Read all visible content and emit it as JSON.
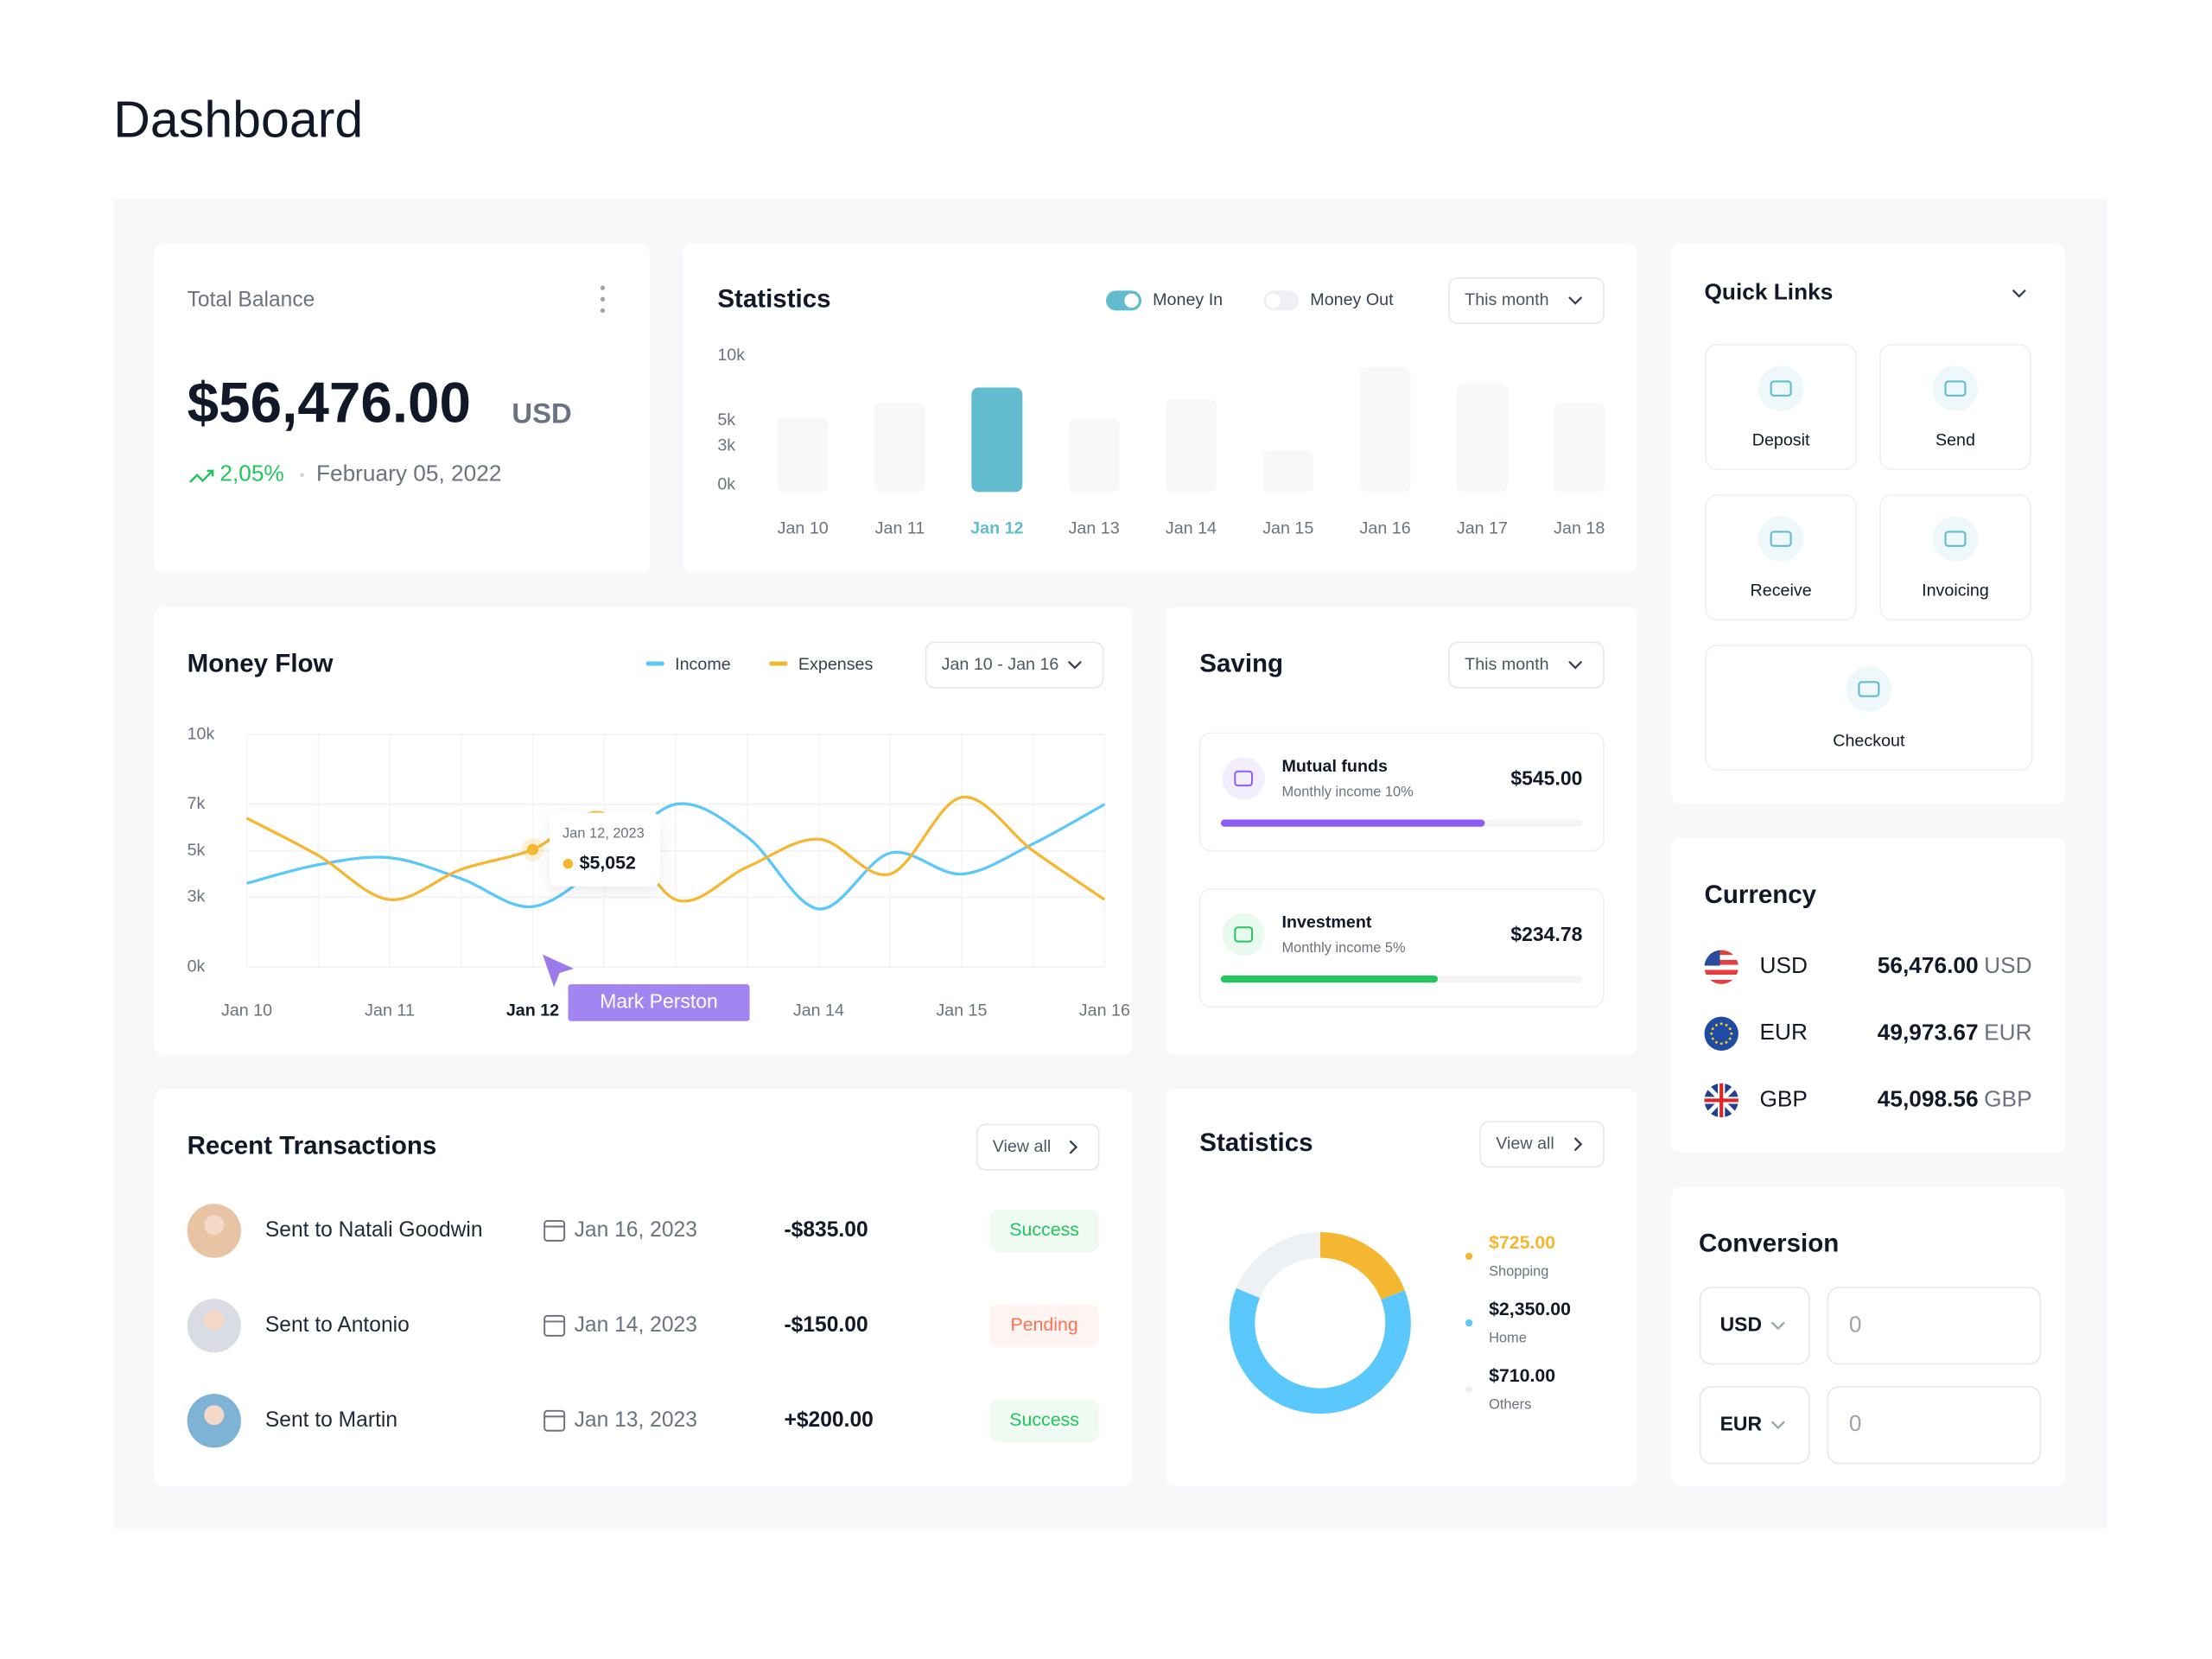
{
  "header": {
    "title": "Dashboard"
  },
  "total_balance": {
    "label": "Total Balance",
    "amount": "$56,476.00",
    "currency": "USD",
    "change": "2,05%",
    "date": "February 05, 2022"
  },
  "statistics": {
    "type": "bar",
    "title": "Statistics",
    "toggles": [
      {
        "label": "Money In",
        "on": true
      },
      {
        "label": "Money Out",
        "on": false
      }
    ],
    "period": "This month",
    "categories": [
      "Jan 10",
      "Jan 11",
      "Jan 12",
      "Jan 13",
      "Jan 14",
      "Jan 15",
      "Jan 16",
      "Jan 17",
      "Jan 18"
    ],
    "values": [
      5800,
      6900,
      8100,
      5700,
      7200,
      3200,
      9700,
      8400,
      6900
    ],
    "color": "#f7f8fa",
    "active_color": "#62bccd",
    "active_index": 2,
    "ylim": [
      0,
      10000
    ],
    "yticks": [
      {
        "value": 0,
        "label": "0k"
      },
      {
        "value": 3000,
        "label": "3k"
      },
      {
        "value": 5000,
        "label": "5k"
      },
      {
        "value": 10000,
        "label": "10k"
      }
    ]
  },
  "money_flow": {
    "type": "line",
    "title": "Money Flow",
    "period": "Jan 10 - Jan 16",
    "categories": [
      "Jan 10",
      null,
      "Jan 11",
      null,
      "Jan 12",
      null,
      "Jan 13",
      null,
      "Jan 14",
      null,
      "Jan 15",
      null,
      "Jan 16"
    ],
    "series": [
      {
        "name": "Income",
        "color": "#5ac8fa",
        "values": [
          3600,
          4400,
          4700,
          3800,
          2600,
          4500,
          7000,
          5600,
          2500,
          4900,
          4000,
          5300,
          7000
        ]
      },
      {
        "name": "Expenses",
        "color": "#f5b731",
        "values": [
          6400,
          4800,
          2900,
          4200,
          5052,
          6600,
          2900,
          4300,
          5500,
          4000,
          7300,
          5000,
          2900
        ],
        "value_labels": [
          null,
          null,
          null,
          null,
          "$5,052",
          null,
          null,
          null,
          null,
          null,
          null,
          null,
          null
        ]
      }
    ],
    "ylim": [
      0,
      10000
    ],
    "yticks": [
      {
        "value": 0,
        "label": "0k"
      },
      {
        "value": 3000,
        "label": "3k"
      },
      {
        "value": 5000,
        "label": "5k"
      },
      {
        "value": 7000,
        "label": "7k"
      },
      {
        "value": 10000,
        "label": "10k"
      }
    ],
    "grid": true,
    "tooltip_date": "Jan 12, 2023",
    "cursor_label": "Mark Perston"
  },
  "saving": {
    "title": "Saving",
    "period": "This month",
    "items": [
      {
        "name": "Mutual funds",
        "subtitle": "Monthly income 10%",
        "amount": "$545.00",
        "progress": 73,
        "color": "#8b5cf6"
      },
      {
        "name": "Investment",
        "subtitle": "Monthly income 5%",
        "amount": "$234.78",
        "progress": 60,
        "color": "#22c55e"
      }
    ]
  },
  "transactions": {
    "title": "Recent Transactions",
    "action": "View all",
    "rows": [
      {
        "name": "Sent to Natali Goodwin",
        "date": "Jan 16, 2023",
        "amount": "-$835.00",
        "status": "Success",
        "status_color": "#22c55e"
      },
      {
        "name": "Sent to Antonio",
        "date": "Jan 14, 2023",
        "amount": "-$150.00",
        "status": "Pending",
        "status_color": "#f97355"
      },
      {
        "name": "Sent to Martin",
        "date": "Jan 13, 2023",
        "amount": "+$200.00",
        "status": "Success",
        "status_color": "#22c55e"
      }
    ]
  },
  "spending": {
    "type": "pie",
    "title": "Statistics",
    "action": "View all",
    "categories": [
      "Shopping",
      "Home",
      "Others"
    ],
    "values": [
      725,
      2350,
      710
    ],
    "value_labels": [
      "$725.00",
      "$2,350.00",
      "$710.00"
    ],
    "colors": [
      "#f5b731",
      "#5ac8fa",
      "#eef1f4"
    ]
  },
  "quick_links": {
    "title": "Quick Links",
    "items": [
      "Deposit",
      "Send",
      "Receive",
      "Invoicing",
      "Checkout"
    ]
  },
  "currency": {
    "title": "Currency",
    "rows": [
      {
        "code": "USD",
        "amount": "56,476.00",
        "unit": "USD"
      },
      {
        "code": "EUR",
        "amount": "49,973.67",
        "unit": "EUR"
      },
      {
        "code": "GBP",
        "amount": "45,098.56",
        "unit": "GBP"
      }
    ]
  },
  "conversion": {
    "title": "Conversion",
    "rows": [
      {
        "currency": "USD",
        "value": 0
      },
      {
        "currency": "EUR",
        "value": 0
      }
    ]
  }
}
